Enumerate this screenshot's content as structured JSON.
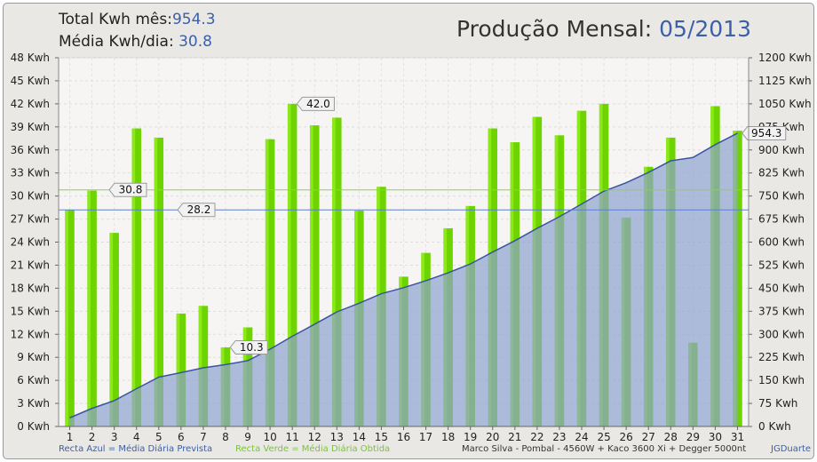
{
  "header": {
    "total_label": "Total Kwh mês:",
    "total_value": "954.3",
    "avg_label": "Média Kwh/dia:",
    "avg_value": "30.8",
    "title_label": "Produção Mensal:",
    "title_value": "05/2013"
  },
  "footer": {
    "blue_line_note": "Recta Azul = Média Diária Prevista",
    "green_line_note": "Recta Verde = Média Diária Obtida",
    "system_info": "Marco Silva - Pombal - 4560W + Kaco 3600 Xi + Degger 5000nt",
    "credit": "JGDuarte"
  },
  "colors": {
    "bar": "#6ed400",
    "bar_highlight": "#9ef52a",
    "area_fill": "#8fa3cf",
    "area_line": "#3a54a0",
    "expected_line": "#5b7fd0",
    "obtained_line": "#8fd14a",
    "axis_value_text": "#3b5fa8"
  },
  "chart_data": {
    "type": "bar",
    "categories": [
      "1",
      "2",
      "3",
      "4",
      "5",
      "6",
      "7",
      "8",
      "9",
      "10",
      "11",
      "12",
      "13",
      "14",
      "15",
      "16",
      "17",
      "18",
      "19",
      "20",
      "21",
      "22",
      "23",
      "24",
      "25",
      "26",
      "27",
      "28",
      "29",
      "30",
      "31"
    ],
    "ylim": [
      0,
      48
    ],
    "yticks": [
      "0 Kwh",
      "3 Kwh",
      "6 Kwh",
      "9 Kwh",
      "12 Kwh",
      "15 Kwh",
      "18 Kwh",
      "21 Kwh",
      "24 Kwh",
      "27 Kwh",
      "30 Kwh",
      "33 Kwh",
      "36 Kwh",
      "39 Kwh",
      "42 Kwh",
      "45 Kwh",
      "48 Kwh"
    ],
    "y2lim": [
      0,
      1200
    ],
    "y2ticks": [
      "0 Kwh",
      "75 Kwh",
      "150 Kwh",
      "225 Kwh",
      "300 Kwh",
      "375 Kwh",
      "450 Kwh",
      "525 Kwh",
      "600 Kwh",
      "675 Kwh",
      "750 Kwh",
      "825 Kwh",
      "900 Kwh",
      "975 Kwh",
      "1050 Kwh",
      "1125 Kwh",
      "1200 Kwh"
    ],
    "grid": true,
    "series": [
      {
        "axis": "left",
        "values": [
          28.2,
          30.7,
          25.2,
          38.8,
          37.6,
          14.7,
          15.7,
          10.3,
          12.9,
          37.4,
          42.0,
          39.2,
          40.2,
          28.1,
          31.2,
          19.5,
          22.6,
          25.8,
          28.7,
          38.8,
          37.0,
          40.3,
          37.9,
          41.1,
          42.0,
          27.2,
          33.8,
          37.6,
          10.9,
          41.7,
          38.5
        ]
      },
      {
        "axis": "right",
        "values": [
          28.2,
          58.9,
          84.1,
          122.9,
          160.5,
          175.2,
          190.9,
          201.2,
          214.1,
          251.5,
          293.5,
          332.7,
          372.9,
          401.0,
          432.2,
          451.7,
          474.3,
          500.1,
          528.8,
          567.6,
          604.6,
          644.9,
          682.8,
          723.9,
          765.9,
          793.1,
          826.9,
          864.5,
          875.4,
          917.1,
          954.3
        ]
      }
    ],
    "reference_lines": [
      {
        "value": 28.2,
        "label": "28.2",
        "color": "expected"
      },
      {
        "value": 30.8,
        "label": "30.8",
        "color": "obtained"
      }
    ],
    "annotations": [
      {
        "day": 11,
        "label": "42.0"
      },
      {
        "day": 8,
        "label": "10.3"
      },
      {
        "day": 31,
        "label": "954.3",
        "axis": "right"
      }
    ]
  }
}
